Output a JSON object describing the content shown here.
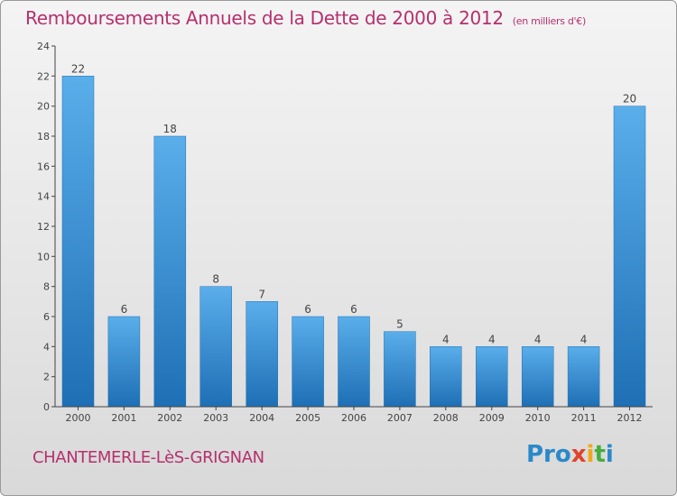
{
  "header": {
    "title": "Remboursements Annuels de la Dette de 2000 à 2012",
    "unit": "(en milliers d'€)"
  },
  "footer": {
    "commune": "CHANTEMERLE-LèS-GRIGNAN",
    "logo_text": "Proxiti",
    "logo_parts": [
      "Pro",
      "x",
      "i",
      "t",
      "i"
    ]
  },
  "colors": {
    "title": "#b5306e",
    "bar_light": "#5aaeea",
    "bar_dark": "#1e6fb5",
    "axis": "#444444",
    "label": "#444444"
  },
  "chart_data": {
    "type": "bar",
    "categories": [
      "2000",
      "2001",
      "2002",
      "2003",
      "2004",
      "2005",
      "2006",
      "2007",
      "2008",
      "2009",
      "2010",
      "2011",
      "2012"
    ],
    "values": [
      22,
      6,
      18,
      8,
      7,
      6,
      6,
      5,
      4,
      4,
      4,
      4,
      20
    ],
    "data_labels": [
      "22",
      "6",
      "18",
      "8",
      "7",
      "6",
      "6",
      "5",
      "4",
      "4",
      "4",
      "4",
      "20"
    ],
    "yticks": [
      "0",
      "2",
      "4",
      "6",
      "8",
      "10",
      "12",
      "14",
      "16",
      "18",
      "20",
      "22",
      "24"
    ],
    "ylim": [
      0,
      24
    ],
    "title": "Remboursements Annuels de la Dette de 2000 à 2012",
    "xlabel": "",
    "ylabel": "",
    "grid": false,
    "legend": "none"
  }
}
